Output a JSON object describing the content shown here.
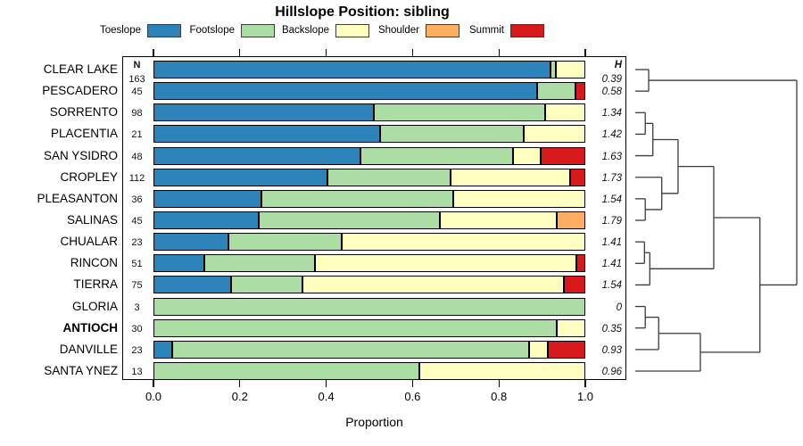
{
  "title": "Hillslope Position: sibling",
  "columns": {
    "n_header": "N",
    "h_header": "H"
  },
  "legend": [
    {
      "label": "Toeslope",
      "color": "#2B83BA"
    },
    {
      "label": "Footslope",
      "color": "#ABDDA4"
    },
    {
      "label": "Backslope",
      "color": "#FFFFBF"
    },
    {
      "label": "Shoulder",
      "color": "#FDAE61"
    },
    {
      "label": "Summit",
      "color": "#D7191C"
    }
  ],
  "chart_data": {
    "type": "bar",
    "orientation": "horizontal-stacked",
    "title": "Hillslope Position: sibling",
    "xlabel": "Proportion",
    "xlim": [
      0,
      1
    ],
    "xticks": [
      "0.0",
      "0.2",
      "0.4",
      "0.6",
      "0.8",
      "1.0"
    ],
    "categories": [
      "Toeslope",
      "Footslope",
      "Backslope",
      "Shoulder",
      "Summit"
    ],
    "colors": [
      "#2B83BA",
      "#ABDDA4",
      "#FFFFBF",
      "#FDAE61",
      "#D7191C"
    ],
    "rows": [
      {
        "name": "CLEAR LAKE",
        "n": 163,
        "h": "0.39",
        "bold": false,
        "values": [
          0.92,
          0.012,
          0.068,
          0,
          0
        ]
      },
      {
        "name": "PESCADERO",
        "n": 45,
        "h": "0.58",
        "bold": false,
        "values": [
          0.889,
          0.089,
          0,
          0,
          0.022
        ]
      },
      {
        "name": "SORRENTO",
        "n": 98,
        "h": "1.34",
        "bold": false,
        "values": [
          0.51,
          0.398,
          0.092,
          0,
          0
        ]
      },
      {
        "name": "PLACENTIA",
        "n": 21,
        "h": "1.42",
        "bold": false,
        "values": [
          0.524,
          0.333,
          0.143,
          0,
          0
        ]
      },
      {
        "name": "SAN YSIDRO",
        "n": 48,
        "h": "1.63",
        "bold": false,
        "values": [
          0.479,
          0.354,
          0.063,
          0,
          0.104
        ]
      },
      {
        "name": "CROPLEY",
        "n": 112,
        "h": "1.73",
        "bold": false,
        "values": [
          0.402,
          0.286,
          0.277,
          0,
          0.035
        ]
      },
      {
        "name": "PLEASANTON",
        "n": 36,
        "h": "1.54",
        "bold": false,
        "values": [
          0.25,
          0.444,
          0.306,
          0,
          0
        ]
      },
      {
        "name": "SALINAS",
        "n": 45,
        "h": "1.79",
        "bold": false,
        "values": [
          0.244,
          0.42,
          0.269,
          0.067,
          0
        ]
      },
      {
        "name": "CHUALAR",
        "n": 23,
        "h": "1.41",
        "bold": false,
        "values": [
          0.174,
          0.261,
          0.565,
          0,
          0
        ]
      },
      {
        "name": "RINCON",
        "n": 51,
        "h": "1.41",
        "bold": false,
        "values": [
          0.118,
          0.255,
          0.607,
          0,
          0.02
        ]
      },
      {
        "name": "TIERRA",
        "n": 75,
        "h": "1.54",
        "bold": false,
        "values": [
          0.18,
          0.165,
          0.605,
          0,
          0.05
        ]
      },
      {
        "name": "GLORIA",
        "n": 3,
        "h": "0",
        "bold": false,
        "values": [
          0,
          1.0,
          0,
          0,
          0
        ]
      },
      {
        "name": "ANTIOCH",
        "n": 30,
        "h": "0.35",
        "bold": true,
        "values": [
          0,
          0.933,
          0.067,
          0,
          0
        ]
      },
      {
        "name": "DANVILLE",
        "n": 23,
        "h": "0.93",
        "bold": false,
        "values": [
          0.043,
          0.826,
          0.044,
          0,
          0.087
        ]
      },
      {
        "name": "SANTA YNEZ",
        "n": 13,
        "h": "0.96",
        "bold": false,
        "values": [
          0,
          0.615,
          0.385,
          0,
          0
        ]
      }
    ],
    "dendrogram": {
      "leaf_order": [
        "CLEAR LAKE",
        "PESCADERO",
        "SORRENTO",
        "PLACENTIA",
        "SAN YSIDRO",
        "CROPLEY",
        "PLEASANTON",
        "SALINAS",
        "CHUALAR",
        "RINCON",
        "TIERRA",
        "GLORIA",
        "ANTIOCH",
        "DANVILLE",
        "SANTA YNEZ"
      ],
      "merges": [
        {
          "a": "CLEAR LAKE",
          "b": "PESCADERO",
          "h": 0.083
        },
        {
          "a": "SORRENTO",
          "b": "PLACENTIA",
          "h": 0.062
        },
        {
          "a": "m1",
          "b": "SAN YSIDRO",
          "h": 0.109
        },
        {
          "a": "PLEASANTON",
          "b": "SALINAS",
          "h": 0.062
        },
        {
          "a": "CROPLEY",
          "b": "m3",
          "h": 0.164
        },
        {
          "a": "m2",
          "b": "m4",
          "h": 0.265
        },
        {
          "a": "CHUALAR",
          "b": "RINCON",
          "h": 0.057
        },
        {
          "a": "m6",
          "b": "TIERRA",
          "h": 0.09
        },
        {
          "a": "m5",
          "b": "m7",
          "h": 0.486
        },
        {
          "a": "GLORIA",
          "b": "ANTIOCH",
          "h": 0.062
        },
        {
          "a": "m9",
          "b": "DANVILLE",
          "h": 0.145
        },
        {
          "a": "m10",
          "b": "SANTA YNEZ",
          "h": 0.403
        },
        {
          "a": "m8",
          "b": "m11",
          "h": 0.772
        },
        {
          "a": "m0",
          "b": "m12",
          "h": 1.0
        }
      ]
    }
  }
}
